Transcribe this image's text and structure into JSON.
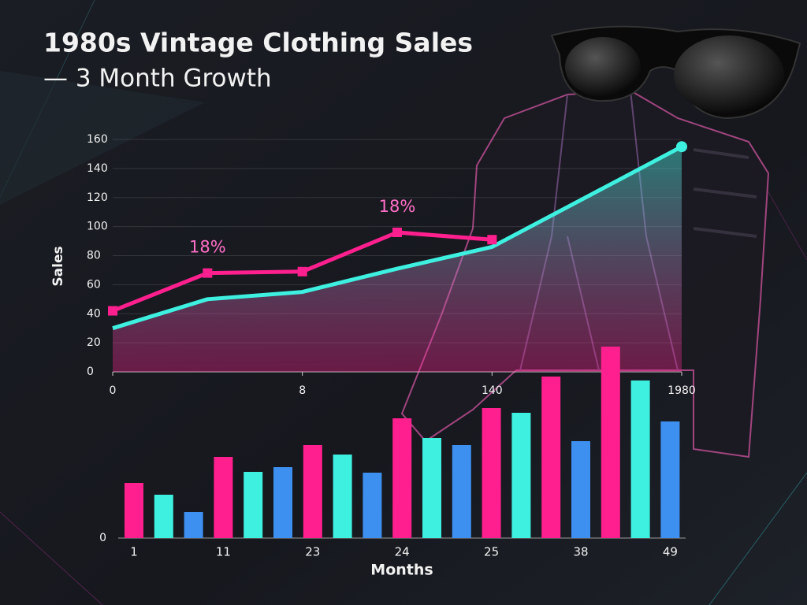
{
  "chart_data": [
    {
      "type": "line",
      "title": "1980s Vintage Clothing Sales",
      "subtitle": "— 3 Month Growth",
      "y_label": "Sales",
      "x": [
        0,
        4,
        8,
        12,
        16,
        24
      ],
      "xlim": [
        0,
        24
      ],
      "xticks": [
        0,
        8,
        {
          "value": 16,
          "label": "140"
        },
        {
          "value": 24,
          "label": "1980"
        }
      ],
      "ylim": [
        0,
        160
      ],
      "yticks": [
        0,
        20,
        40,
        60,
        80,
        100,
        120,
        140,
        160
      ],
      "grid": true,
      "series": [
        {
          "color": "#3ef0e0",
          "values": [
            30,
            50,
            55,
            71,
            86,
            155
          ]
        },
        {
          "color": "#ff1f8e",
          "values": [
            42,
            68,
            69,
            96,
            91,
            null
          ]
        }
      ],
      "annotations": [
        {
          "text": "18%",
          "x": 4
        },
        {
          "text": "18%",
          "x": 12
        }
      ]
    },
    {
      "type": "bar",
      "x_label": "Months",
      "categories": [
        "1",
        null,
        null,
        "11",
        null,
        null,
        "23",
        null,
        null,
        "24",
        null,
        null,
        "25",
        null,
        null,
        "38",
        null,
        null,
        "49"
      ],
      "values": [
        70,
        55,
        33,
        103,
        84,
        90,
        118,
        106,
        83,
        152,
        127,
        118,
        165,
        159,
        205,
        123,
        243,
        200,
        148
      ],
      "colors": [
        "#ff1f8e",
        "#3ef0e0",
        "#3d8ff0",
        "#ff1f8e",
        "#3ef0e0",
        "#3d8ff0",
        "#ff1f8e",
        "#3ef0e0",
        "#3d8ff0",
        "#ff1f8e",
        "#3ef0e0",
        "#3d8ff0",
        "#ff1f8e",
        "#3ef0e0",
        "#ff1f8e",
        "#3d8ff0",
        "#ff1f8e",
        "#3ef0e0",
        "#3d8ff0"
      ],
      "ylim": [
        0,
        250
      ],
      "yticks": [
        0
      ]
    }
  ]
}
